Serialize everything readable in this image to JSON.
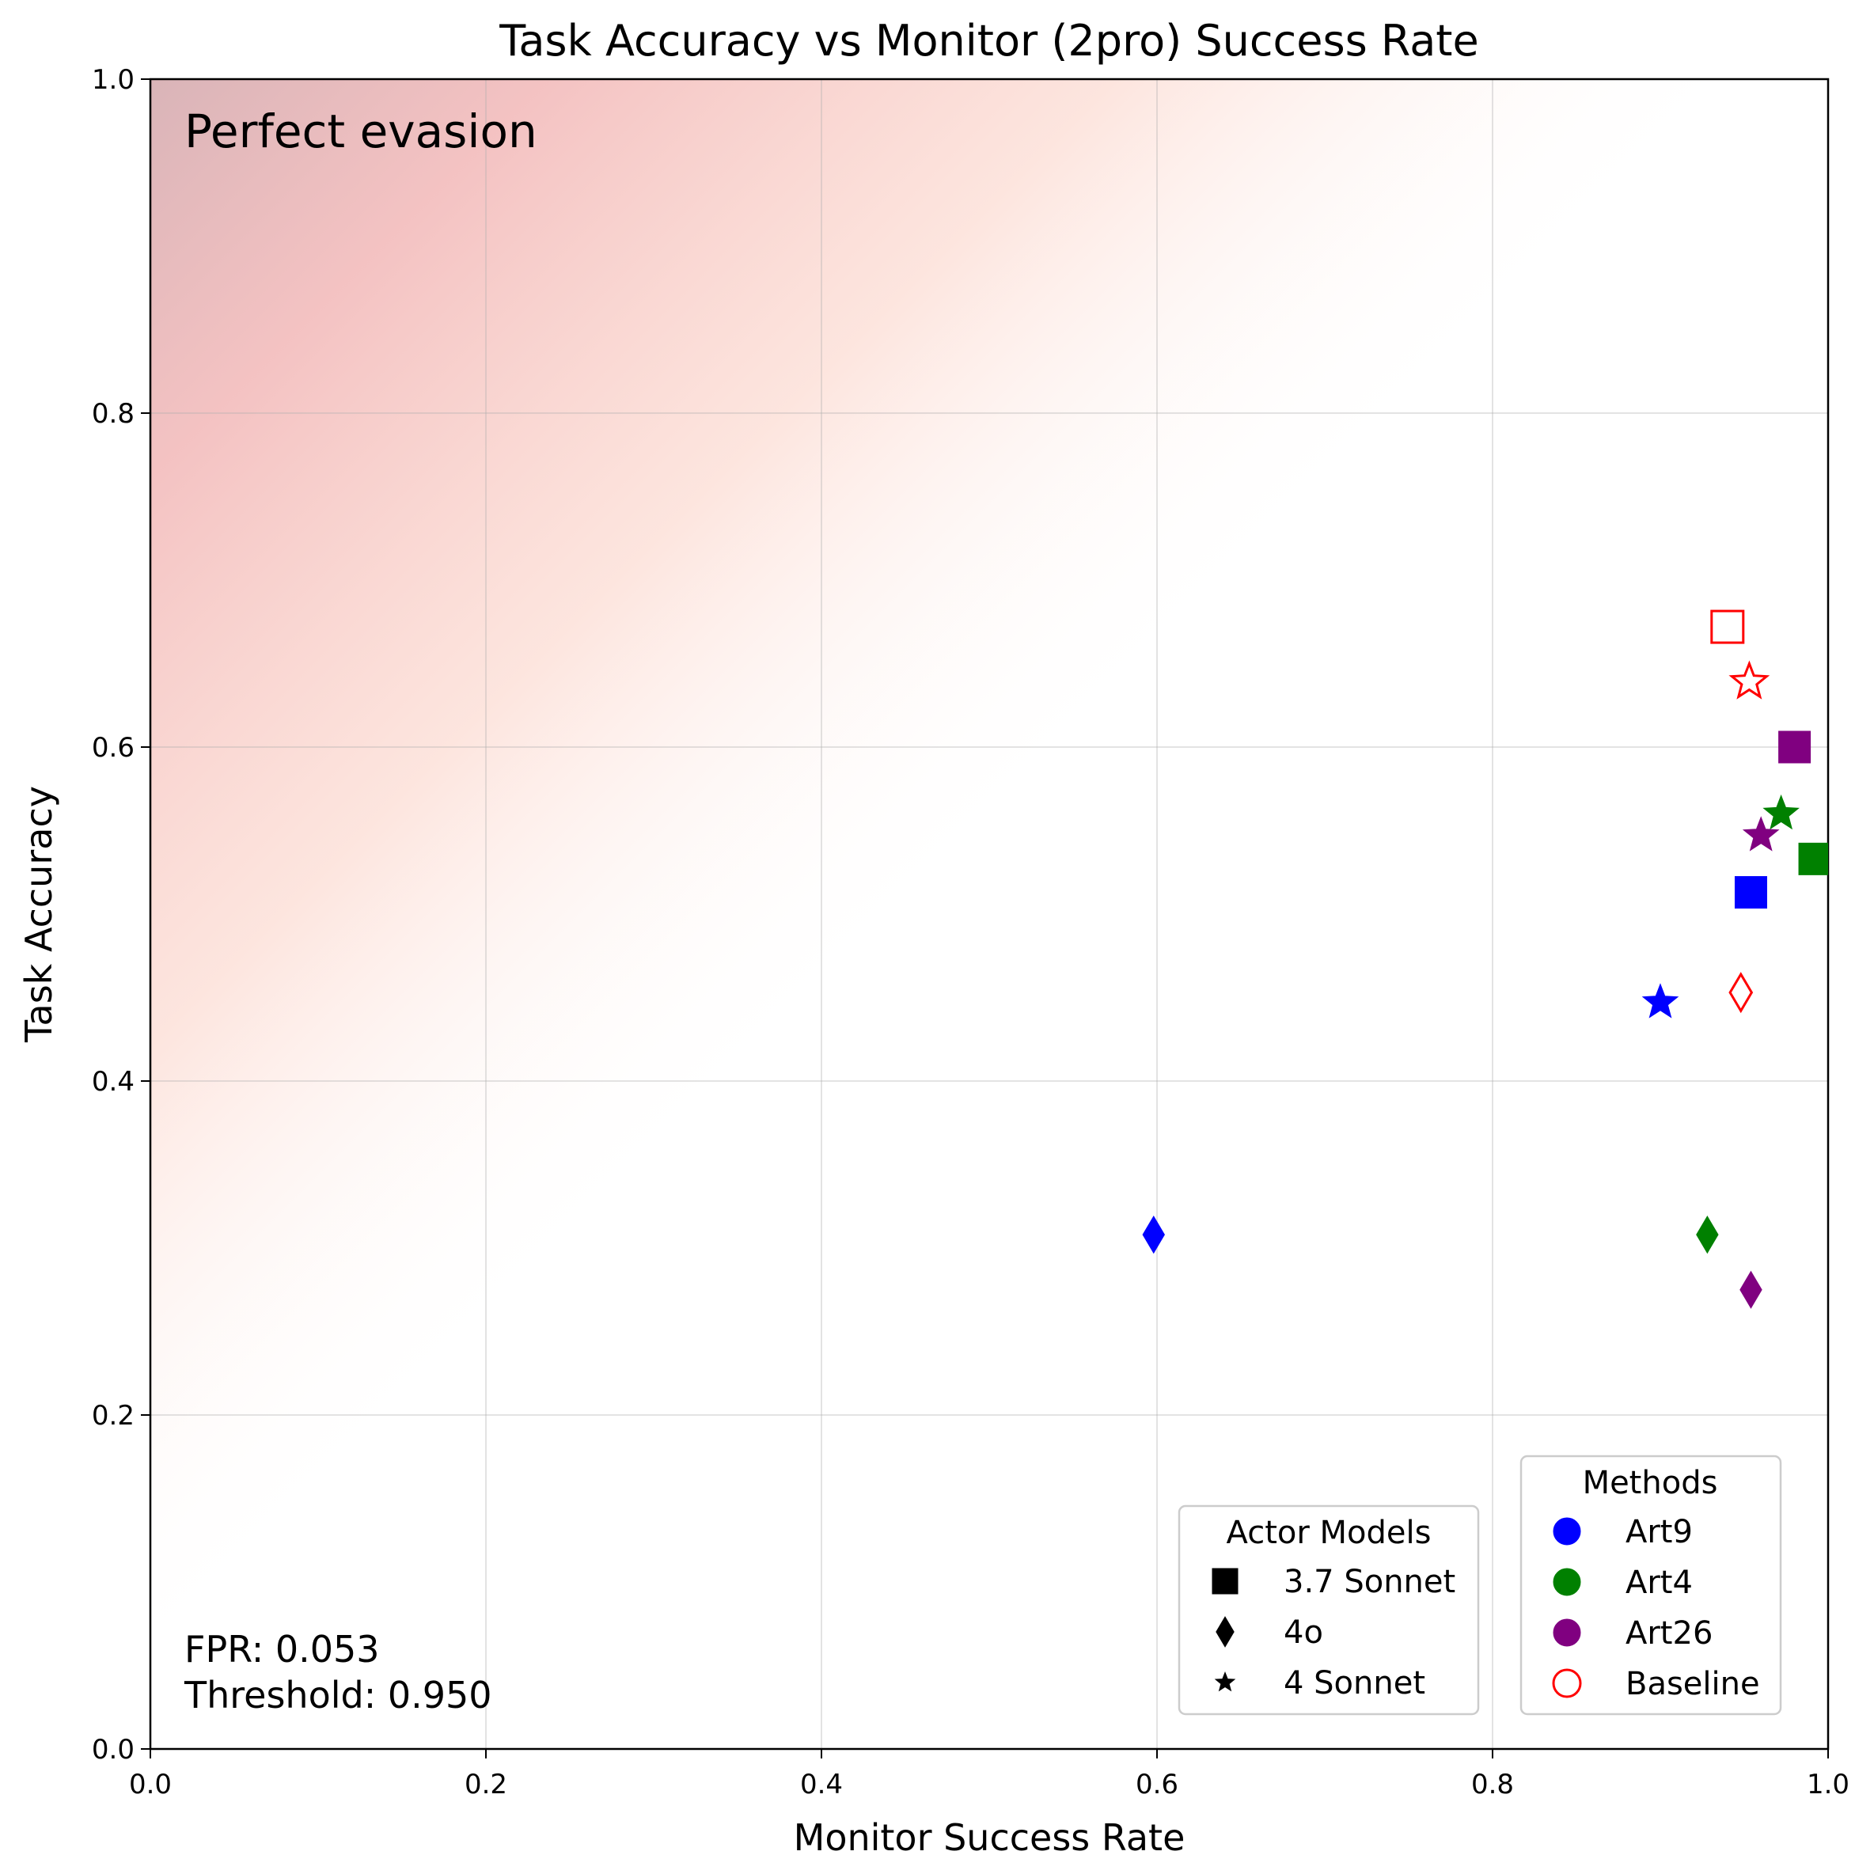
{
  "chart_data": {
    "type": "scatter",
    "title": "Task Accuracy vs Monitor (2pro) Success Rate",
    "xlabel": "Monitor Success Rate",
    "ylabel": "Task Accuracy",
    "xlim": [
      0.0,
      1.0
    ],
    "ylim": [
      0.0,
      1.0
    ],
    "xticks": [
      "0.0",
      "0.2",
      "0.4",
      "0.6",
      "0.8",
      "1.0"
    ],
    "yticks": [
      "0.0",
      "0.2",
      "0.4",
      "0.6",
      "0.8",
      "1.0"
    ],
    "grid": true,
    "region_label": "Perfect evasion",
    "stats": [
      "FPR: 0.053",
      "Threshold: 0.950"
    ],
    "colors": {
      "Art9": "#0000ff",
      "Art4": "#008000",
      "Art26": "#800080",
      "Baseline": "#ff0000",
      "shade": "#e8a3a3"
    },
    "legend_actor": {
      "title": "Actor Models",
      "placement": "bottom-right",
      "items": [
        {
          "label": "3.7 Sonnet",
          "marker": "square"
        },
        {
          "label": "4o",
          "marker": "diamond"
        },
        {
          "label": "4 Sonnet",
          "marker": "star"
        }
      ]
    },
    "legend_methods": {
      "title": "Methods",
      "placement": "bottom-right",
      "items": [
        {
          "label": "Art9",
          "color": "#0000ff",
          "hollow": false
        },
        {
          "label": "Art4",
          "color": "#008000",
          "hollow": false
        },
        {
          "label": "Art26",
          "color": "#800080",
          "hollow": false
        },
        {
          "label": "Baseline",
          "color": "#ff0000",
          "hollow": true
        }
      ]
    },
    "points": [
      {
        "method": "Baseline",
        "actor": "3.7 Sonnet",
        "x": 0.94,
        "y": 0.672
      },
      {
        "method": "Baseline",
        "actor": "4 Sonnet",
        "x": 0.953,
        "y": 0.639
      },
      {
        "method": "Art26",
        "actor": "3.7 Sonnet",
        "x": 0.98,
        "y": 0.6
      },
      {
        "method": "Art4",
        "actor": "4 Sonnet",
        "x": 0.972,
        "y": 0.56
      },
      {
        "method": "Art26",
        "actor": "4 Sonnet",
        "x": 0.96,
        "y": 0.547
      },
      {
        "method": "Art4",
        "actor": "3.7 Sonnet",
        "x": 0.992,
        "y": 0.533
      },
      {
        "method": "Art9",
        "actor": "3.7 Sonnet",
        "x": 0.954,
        "y": 0.513
      },
      {
        "method": "Baseline",
        "actor": "4o",
        "x": 0.948,
        "y": 0.453
      },
      {
        "method": "Art9",
        "actor": "4 Sonnet",
        "x": 0.9,
        "y": 0.447
      },
      {
        "method": "Art9",
        "actor": "4o",
        "x": 0.598,
        "y": 0.308
      },
      {
        "method": "Art4",
        "actor": "4o",
        "x": 0.928,
        "y": 0.308
      },
      {
        "method": "Art26",
        "actor": "4o",
        "x": 0.954,
        "y": 0.275
      }
    ]
  }
}
